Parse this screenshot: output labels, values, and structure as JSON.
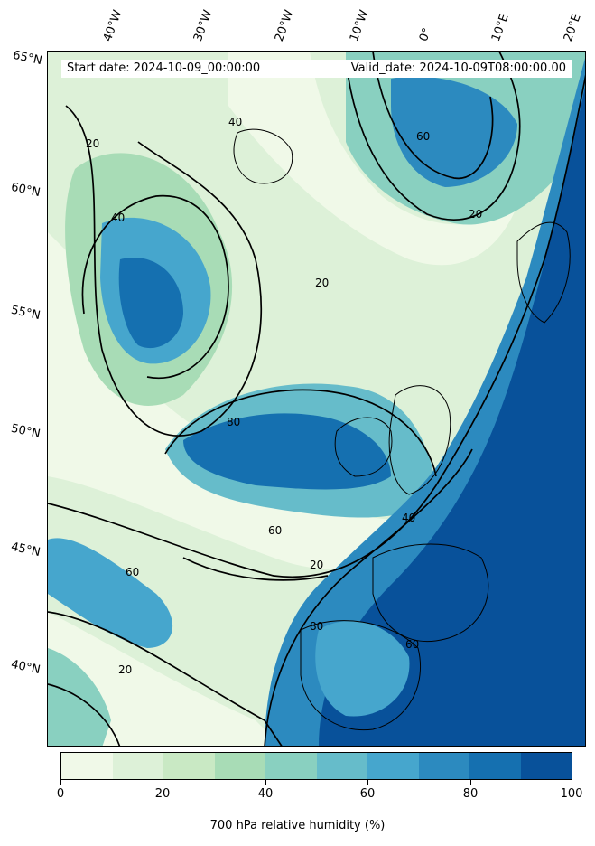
{
  "map": {
    "start_label": "Start date: 2024-10-09_00:00:00",
    "valid_label": "Valid_date: 2024-10-09T08:00:00.00",
    "lon_labels": [
      "40°W",
      "30°W",
      "20°W",
      "10°W",
      "0°",
      "10°E",
      "20°E"
    ],
    "lat_labels": [
      "65°N",
      "60°N",
      "55°N",
      "50°N",
      "45°N",
      "40°N"
    ],
    "contour_labels": [
      "20",
      "40",
      "60",
      "80"
    ]
  },
  "colorbar": {
    "title": "700 hPa relative humidity (%)",
    "ticks": [
      "0",
      "20",
      "40",
      "60",
      "80",
      "100"
    ],
    "colors": [
      "#f0f9e8",
      "#ddf1d8",
      "#c9e9c4",
      "#a8dcb6",
      "#89d0c0",
      "#66bcca",
      "#46a6cd",
      "#2c8abf",
      "#1570b0",
      "#08519a"
    ]
  }
}
